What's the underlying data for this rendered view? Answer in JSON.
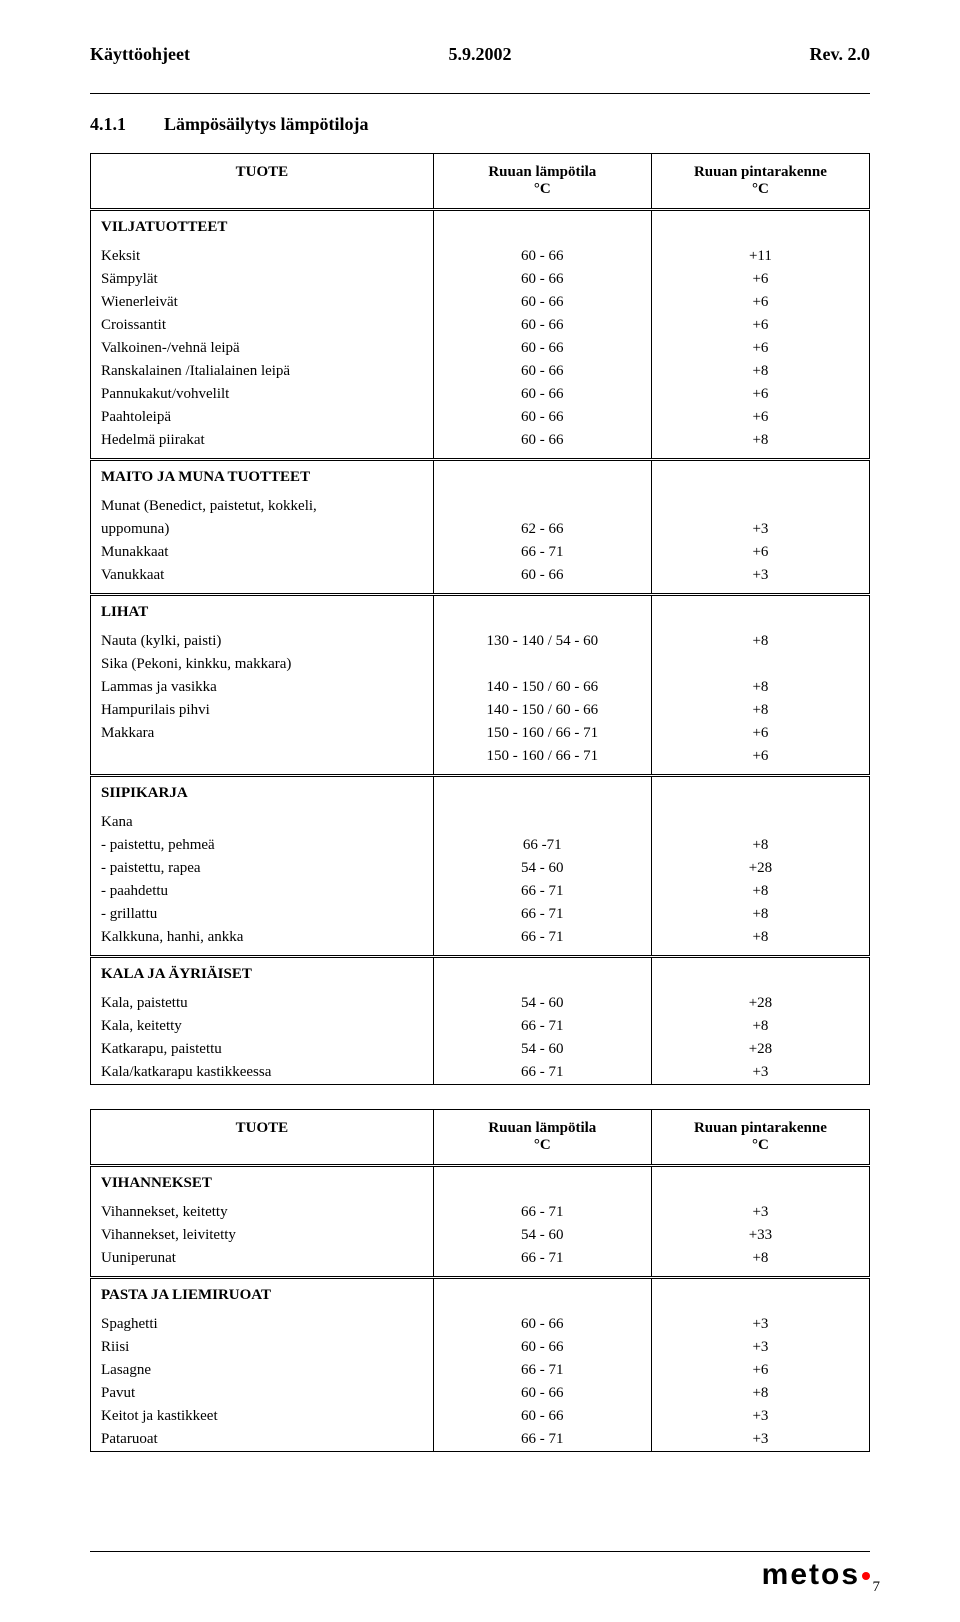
{
  "header": {
    "left": "Käyttöohjeet",
    "center": "5.9.2002",
    "right": "Rev.  2.0"
  },
  "section": {
    "number": "4.1.1",
    "title": "Lämpösäilytys lämpötiloja"
  },
  "table1": {
    "col_headers": [
      "TUOTE",
      "Ruuan lämpötila\n°C",
      "Ruuan pintarakenne\n°C"
    ],
    "groups": [
      {
        "label": "VILJATUOTTEET",
        "rows": [
          [
            "Keksit",
            "60 - 66",
            "+11"
          ],
          [
            "Sämpylät",
            "60 - 66",
            "+6"
          ],
          [
            "Wienerleivät",
            "60 - 66",
            "+6"
          ],
          [
            "Croissantit",
            "60 - 66",
            "+6"
          ],
          [
            "Valkoinen-/vehnä leipä",
            "60 - 66",
            "+6"
          ],
          [
            "Ranskalainen /Italialainen leipä",
            "60 - 66",
            "+8"
          ],
          [
            "Pannukakut/vohvelilt",
            "60 - 66",
            "+6"
          ],
          [
            "Paahtoleipä",
            "60 - 66",
            "+6"
          ],
          [
            "Hedelmä piirakat",
            "60 - 66",
            "+8"
          ]
        ]
      },
      {
        "label": "MAITO JA MUNA TUOTTEET",
        "rows": [
          [
            "Munat (Benedict, paistetut, kokkeli,",
            "",
            ""
          ],
          [
            "uppomuna)",
            "62 - 66",
            "+3"
          ],
          [
            "Munakkaat",
            "66 - 71",
            "+6"
          ],
          [
            "Vanukkaat",
            "60 - 66",
            "+3"
          ]
        ]
      },
      {
        "label": "LIHAT",
        "rows": [
          [
            "Nauta (kylki, paisti)",
            "130 - 140 / 54 - 60",
            "+8"
          ],
          [
            "Sika (Pekoni, kinkku, makkara)",
            "",
            ""
          ],
          [
            "Lammas ja vasikka",
            "140 - 150 / 60 - 66",
            "+8"
          ],
          [
            "Hampurilais pihvi",
            "140 - 150 / 60 - 66",
            "+8"
          ],
          [
            "Makkara",
            "150 - 160 / 66 - 71",
            "+6"
          ],
          [
            "",
            "150 - 160 / 66 - 71",
            "+6"
          ]
        ]
      },
      {
        "label": "SIIPIKARJA",
        "rows": [
          [
            "Kana",
            "",
            ""
          ],
          [
            "- paistettu, pehmeä",
            "66 -71",
            "+8"
          ],
          [
            "- paistettu, rapea",
            "54 - 60",
            "+28"
          ],
          [
            "- paahdettu",
            "66 - 71",
            "+8"
          ],
          [
            "- grillattu",
            "66 - 71",
            "+8"
          ],
          [
            "Kalkkuna, hanhi, ankka",
            "66 - 71",
            "+8"
          ]
        ]
      },
      {
        "label": "KALA JA ÄYRIÄISET",
        "rows": [
          [
            "Kala, paistettu",
            "54 - 60",
            "+28"
          ],
          [
            "Kala, keitetty",
            "66 - 71",
            "+8"
          ],
          [
            "Katkarapu, paistettu",
            "54 - 60",
            "+28"
          ],
          [
            "Kala/katkarapu kastikkeessa",
            "66 - 71",
            "+3"
          ]
        ]
      }
    ]
  },
  "table2": {
    "col_headers": [
      "TUOTE",
      "Ruuan lämpötila\n°C",
      "Ruuan pintarakenne\n°C"
    ],
    "groups": [
      {
        "label": "VIHANNEKSET",
        "rows": [
          [
            "Vihannekset, keitetty",
            "66 - 71",
            "+3"
          ],
          [
            "Vihannekset, leivitetty",
            "54 - 60",
            "+33"
          ],
          [
            "Uuniperunat",
            "66 - 71",
            "+8"
          ]
        ]
      },
      {
        "label": "PASTA JA LIEMIRUOAT",
        "rows": [
          [
            "Spaghetti",
            "60 - 66",
            "+3"
          ],
          [
            "Riisi",
            "60 - 66",
            "+3"
          ],
          [
            "Lasagne",
            "66 - 71",
            "+6"
          ],
          [
            "Pavut",
            "60 - 66",
            "+8"
          ],
          [
            "Keitot ja kastikkeet",
            "60 - 66",
            "+3"
          ],
          [
            "Pataruoat",
            "66 - 71",
            "+3"
          ]
        ]
      }
    ]
  },
  "footer": {
    "logo": "metos",
    "page": "7"
  }
}
